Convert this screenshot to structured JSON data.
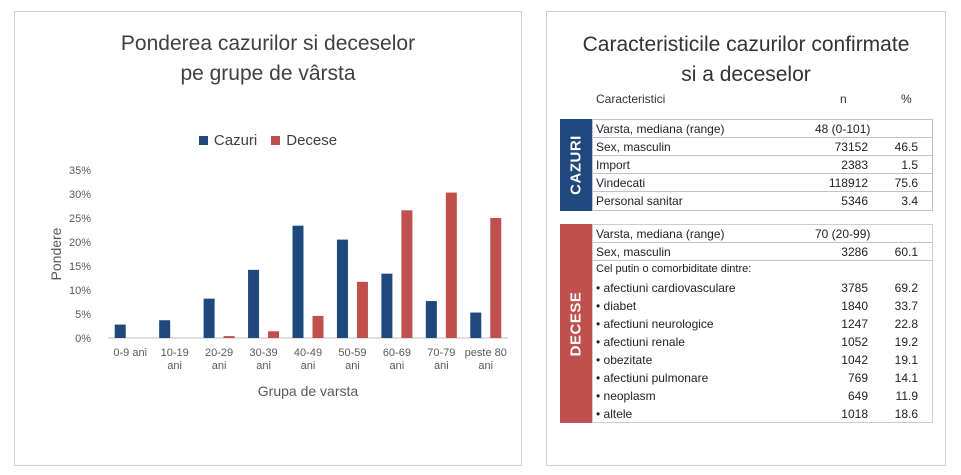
{
  "chart_data": {
    "type": "bar",
    "title_line1": "Ponderea cazurilor si deceselor",
    "title_line2": "pe grupe de vârsta",
    "xlabel": "Grupa de varsta",
    "ylabel": "Pondere",
    "categories": [
      [
        "0-9 ani"
      ],
      [
        "10-19",
        "ani"
      ],
      [
        "20-29",
        "ani"
      ],
      [
        "30-39",
        "ani"
      ],
      [
        "40-49",
        "ani"
      ],
      [
        "50-59",
        "ani"
      ],
      [
        "60-69",
        "ani"
      ],
      [
        "70-79",
        "ani"
      ],
      [
        "peste 80",
        "ani"
      ]
    ],
    "series": [
      {
        "name": "Cazuri",
        "color": "#1f497d",
        "values": [
          2.8,
          3.7,
          8.2,
          14.2,
          23.4,
          20.5,
          13.4,
          7.7,
          5.3
        ]
      },
      {
        "name": "Decese",
        "color": "#c0504d",
        "values": [
          0.0,
          0.0,
          0.4,
          1.4,
          4.6,
          11.7,
          26.6,
          30.3,
          25.0
        ]
      }
    ],
    "ylim": [
      0,
      35
    ],
    "yticks": [
      "0%",
      "5%",
      "10%",
      "15%",
      "20%",
      "25%",
      "30%",
      "35%"
    ],
    "grid": false,
    "legend": "top"
  },
  "table": {
    "title_line1": "Caracteristicile cazurilor confirmate",
    "title_line2": "si a deceselor",
    "header": {
      "label": "Caracteristici",
      "n": "n",
      "pct": "%"
    },
    "cazuri": {
      "section_label": "CAZURI",
      "color": "#1f497d",
      "rows": [
        {
          "label": "Varsta, mediana (range)",
          "n": "48 (0-101)",
          "pct": ""
        },
        {
          "label": "Sex, masculin",
          "n": "73152",
          "pct": "46.5"
        },
        {
          "label": "Import",
          "n": "2383",
          "pct": "1.5"
        },
        {
          "label": "Vindecati",
          "n": "118912",
          "pct": "75.6"
        },
        {
          "label": "Personal sanitar",
          "n": "5346",
          "pct": "3.4"
        }
      ]
    },
    "decese": {
      "section_label": "DECESE",
      "color": "#c0504d",
      "rows": [
        {
          "label": "Varsta, mediana (range)",
          "n": "70 (20-99)",
          "pct": ""
        },
        {
          "label": "Sex, masculin",
          "n": "3286",
          "pct": "60.1"
        },
        {
          "label": "Cel putin o comorbiditate dintre:",
          "n": "",
          "pct": ""
        },
        {
          "label": "• afectiuni cardiovasculare",
          "n": "3785",
          "pct": "69.2"
        },
        {
          "label": "• diabet",
          "n": "1840",
          "pct": "33.7"
        },
        {
          "label": "• afectiuni neurologice",
          "n": "1247",
          "pct": "22.8"
        },
        {
          "label": "• afectiuni renale",
          "n": "1052",
          "pct": "19.2"
        },
        {
          "label": "• obezitate",
          "n": "1042",
          "pct": "19.1"
        },
        {
          "label": "• afectiuni pulmonare",
          "n": "769",
          "pct": "14.1"
        },
        {
          "label": "• neoplasm",
          "n": "649",
          "pct": "11.9"
        },
        {
          "label": "• altele",
          "n": "1018",
          "pct": "18.6"
        }
      ]
    }
  }
}
